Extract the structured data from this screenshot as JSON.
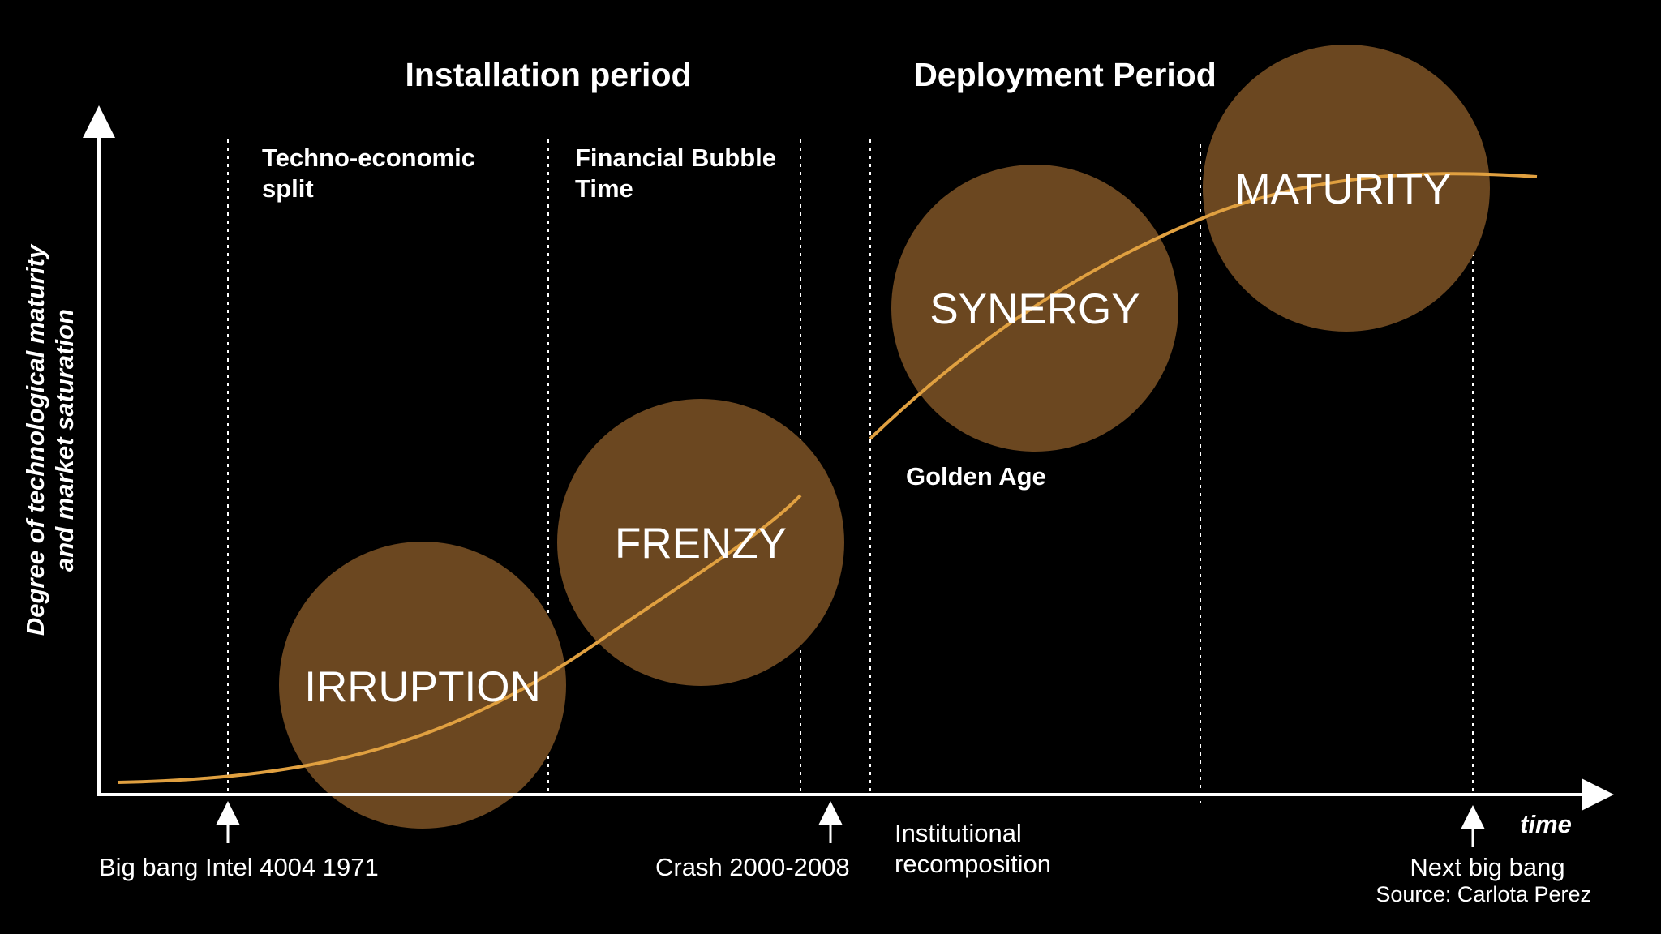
{
  "colors": {
    "background": "#000000",
    "foreground": "#ffffff",
    "bubble_fill": "#6b4720",
    "curve": "#e0a040"
  },
  "periods": {
    "installation": "Installation period",
    "deployment": "Deployment Period"
  },
  "phases": {
    "techno_economic_line1": "Techno-economic",
    "techno_economic_line2": "split",
    "financial_bubble_line1": "Financial Bubble",
    "financial_bubble_line2": "Time",
    "golden_age": "Golden Age"
  },
  "stages": {
    "irruption": "IRRUPTION",
    "frenzy": "FRENZY",
    "synergy": "SYNERGY",
    "maturity": "MATURITY"
  },
  "events": {
    "big_bang": "Big bang Intel 4004 1971",
    "crash": "Crash  2000-2008",
    "institutional_line1": "Institutional",
    "institutional_line2": "recomposition",
    "next_big_bang": "Next big bang"
  },
  "axes": {
    "y_label_line1": "Degree of technological maturity",
    "y_label_line2": "and market saturation",
    "x_label": "time"
  },
  "source": "Source: Carlota Perez"
}
